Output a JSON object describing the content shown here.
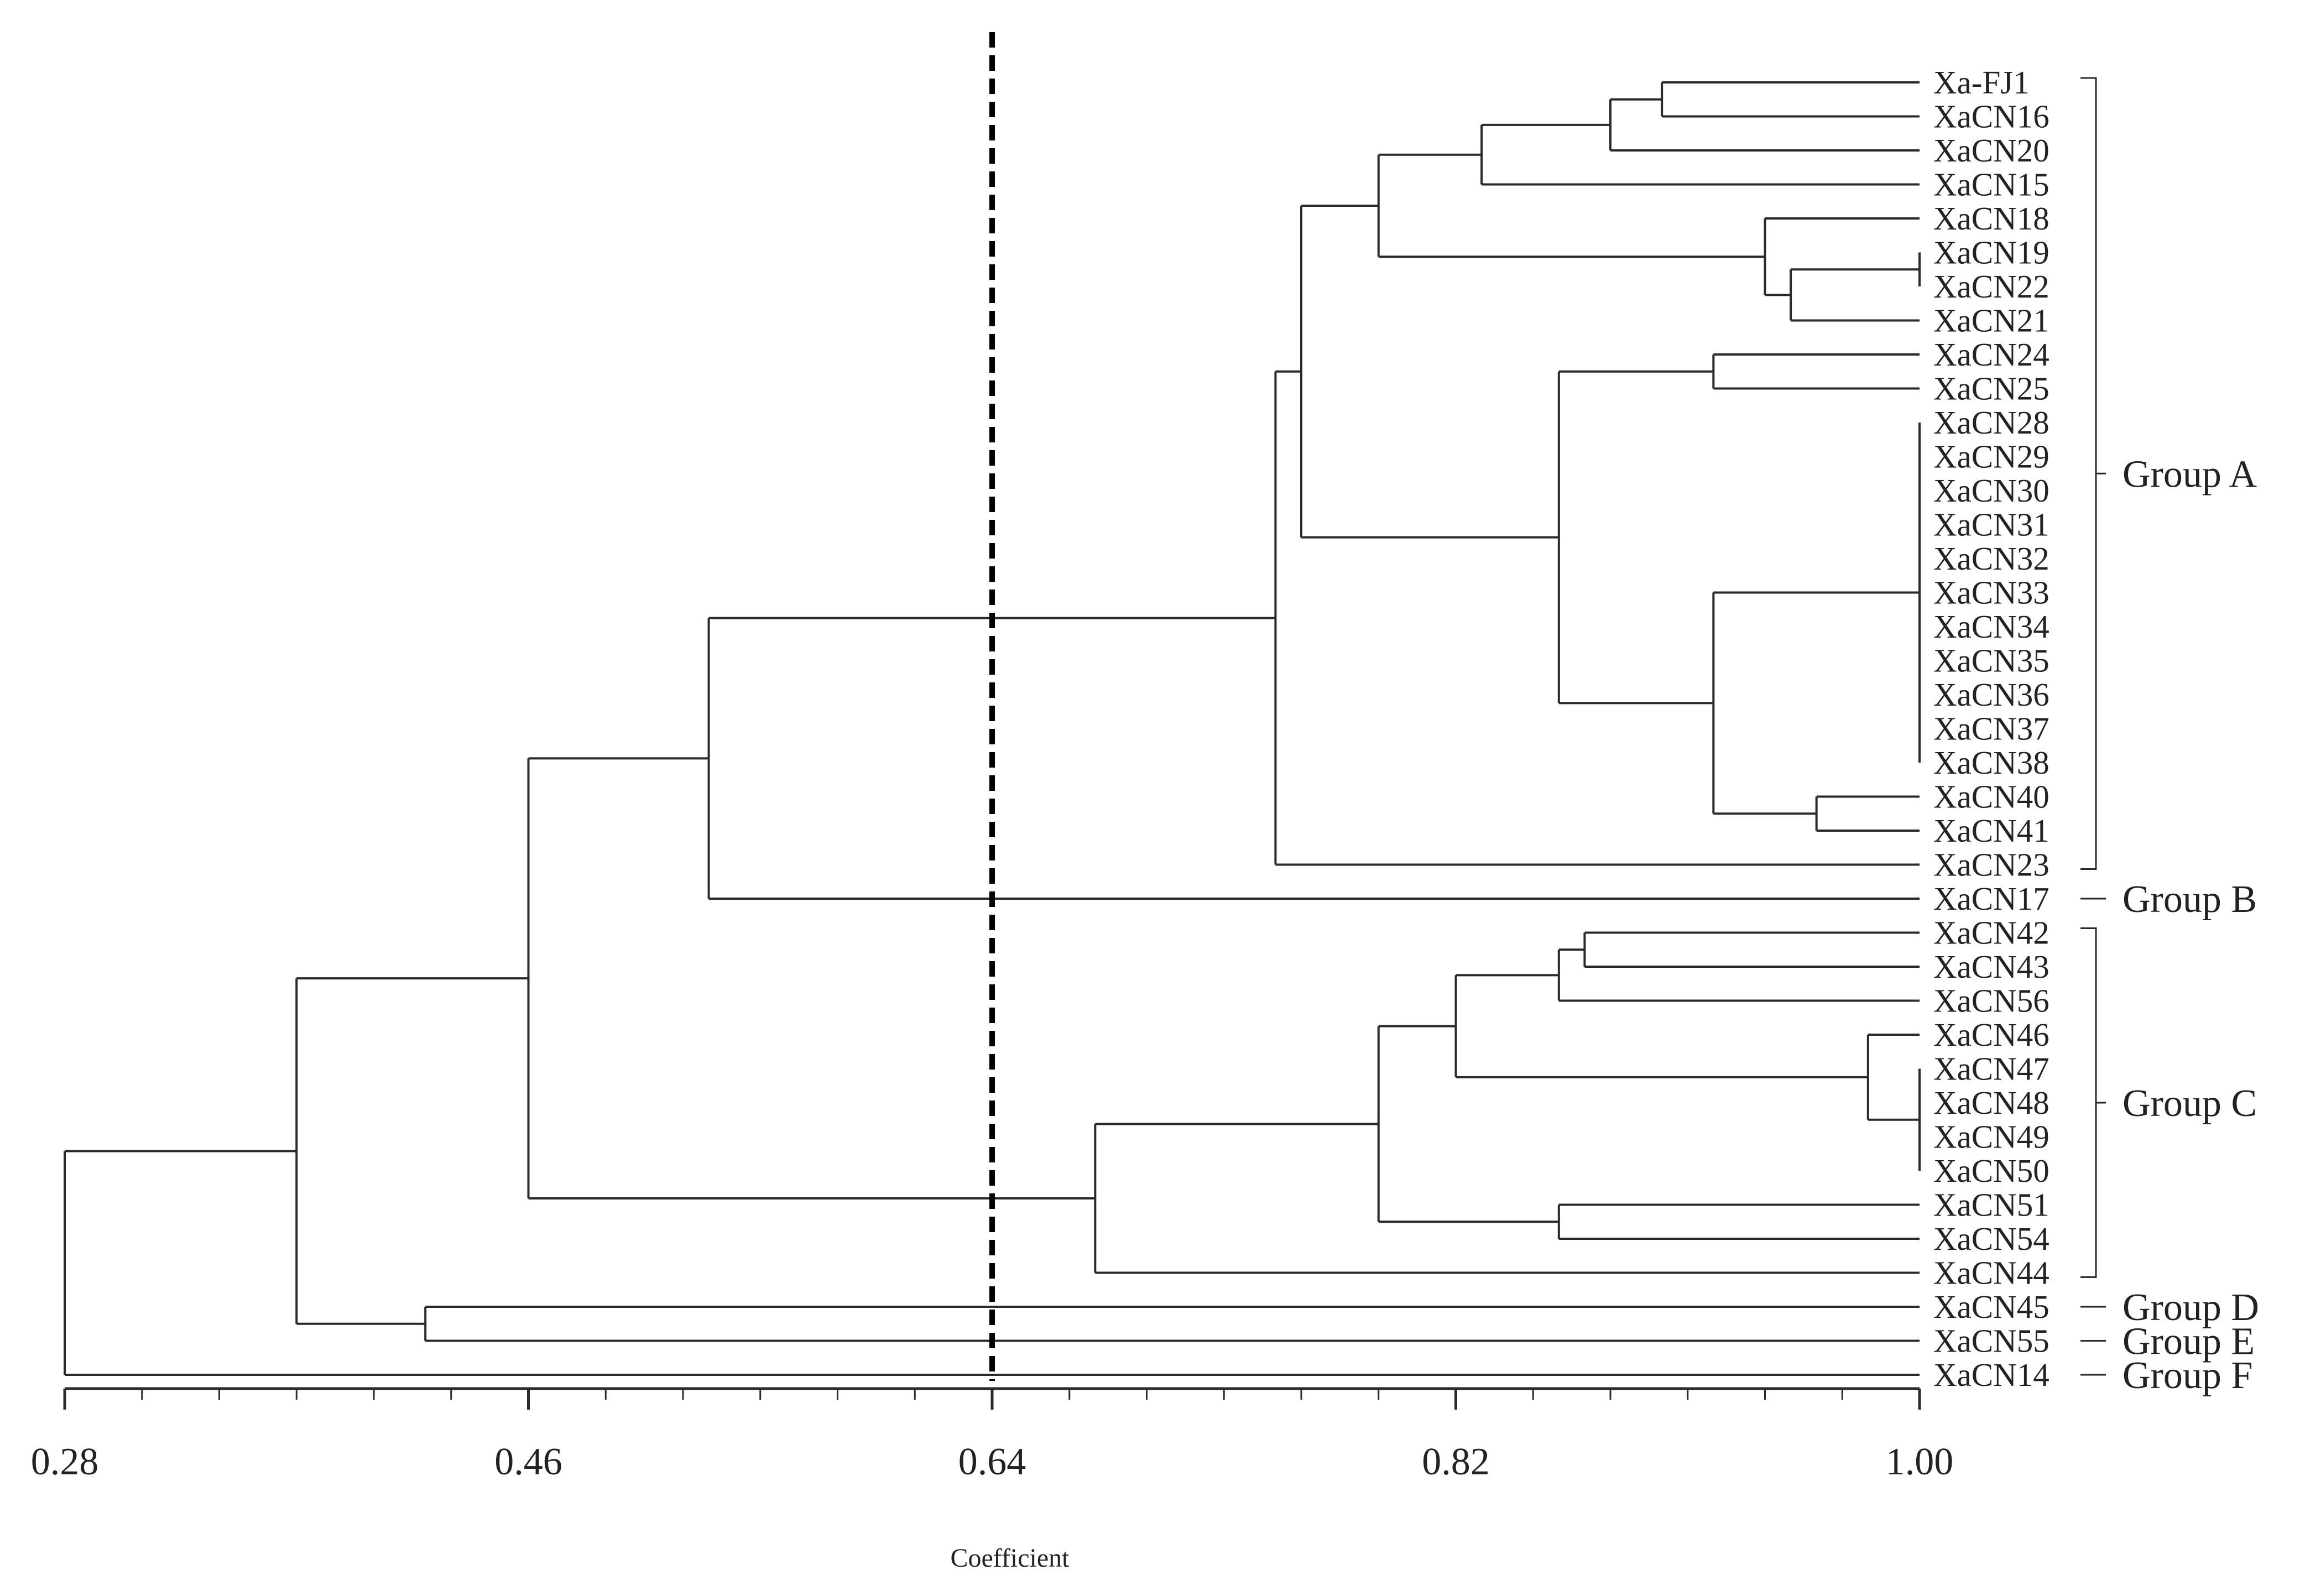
{
  "chart_data": {
    "type": "dendrogram",
    "xlabel": "Coefficient",
    "xlim": [
      0.28,
      1.0
    ],
    "tick_labels": [
      "0.28",
      "0.46",
      "0.64",
      "0.82",
      "1.00"
    ],
    "tick_values": [
      0.28,
      0.46,
      0.64,
      0.82,
      1.0
    ],
    "cutoff": 0.64,
    "leaves": [
      "Xa-FJ1",
      "XaCN16",
      "XaCN20",
      "XaCN15",
      "XaCN18",
      "XaCN19",
      "XaCN22",
      "XaCN21",
      "XaCN24",
      "XaCN25",
      "XaCN28",
      "XaCN29",
      "XaCN30",
      "XaCN31",
      "XaCN32",
      "XaCN33",
      "XaCN34",
      "XaCN35",
      "XaCN36",
      "XaCN37",
      "XaCN38",
      "XaCN40",
      "XaCN41",
      "XaCN23",
      "XaCN17",
      "XaCN42",
      "XaCN43",
      "XaCN56",
      "XaCN46",
      "XaCN47",
      "XaCN48",
      "XaCN49",
      "XaCN50",
      "XaCN51",
      "XaCN54",
      "XaCN44",
      "XaCN45",
      "XaCN55",
      "XaCN14"
    ],
    "merges": [
      {
        "members": [
          "Xa-FJ1",
          "XaCN16"
        ],
        "height": 0.9
      },
      {
        "members": [
          "Xa-FJ1",
          "XaCN16",
          "XaCN20"
        ],
        "height": 0.88
      },
      {
        "members": [
          "Xa-FJ1",
          "XaCN16",
          "XaCN20",
          "XaCN15"
        ],
        "height": 0.83
      },
      {
        "members": [
          "XaCN19",
          "XaCN22"
        ],
        "height": 1.0
      },
      {
        "members": [
          "XaCN19",
          "XaCN22",
          "XaCN21"
        ],
        "height": 0.95
      },
      {
        "members": [
          "XaCN18",
          "XaCN19",
          "XaCN22",
          "XaCN21"
        ],
        "height": 0.94
      },
      {
        "members": [
          "Xa-FJ1",
          "XaCN16",
          "XaCN20",
          "XaCN15",
          "XaCN18",
          "XaCN19",
          "XaCN22",
          "XaCN21"
        ],
        "height": 0.79
      },
      {
        "members": [
          "XaCN24",
          "XaCN25"
        ],
        "height": 0.92
      },
      {
        "members": [
          "XaCN28",
          "XaCN29",
          "XaCN30",
          "XaCN31",
          "XaCN32",
          "XaCN33",
          "XaCN34",
          "XaCN35",
          "XaCN36",
          "XaCN37",
          "XaCN38"
        ],
        "height": 1.0
      },
      {
        "members": [
          "XaCN40",
          "XaCN41"
        ],
        "height": 0.96
      },
      {
        "members": [
          "XaCN28",
          "XaCN29",
          "XaCN30",
          "XaCN31",
          "XaCN32",
          "XaCN33",
          "XaCN34",
          "XaCN35",
          "XaCN36",
          "XaCN37",
          "XaCN38",
          "XaCN40",
          "XaCN41"
        ],
        "height": 0.92
      },
      {
        "members": [
          "XaCN24",
          "XaCN25",
          "XaCN28",
          "XaCN29",
          "XaCN30",
          "XaCN31",
          "XaCN32",
          "XaCN33",
          "XaCN34",
          "XaCN35",
          "XaCN36",
          "XaCN37",
          "XaCN38",
          "XaCN40",
          "XaCN41"
        ],
        "height": 0.86
      },
      {
        "members": [
          "Xa-FJ1",
          "XaCN16",
          "XaCN20",
          "XaCN15",
          "XaCN18",
          "XaCN19",
          "XaCN22",
          "XaCN21",
          "XaCN24",
          "XaCN25",
          "XaCN28",
          "XaCN29",
          "XaCN30",
          "XaCN31",
          "XaCN32",
          "XaCN33",
          "XaCN34",
          "XaCN35",
          "XaCN36",
          "XaCN37",
          "XaCN38",
          "XaCN40",
          "XaCN41"
        ],
        "height": 0.76
      },
      {
        "members": [
          "Xa-FJ1",
          "XaCN16",
          "XaCN20",
          "XaCN15",
          "XaCN18",
          "XaCN19",
          "XaCN22",
          "XaCN21",
          "XaCN24",
          "XaCN25",
          "XaCN28",
          "XaCN29",
          "XaCN30",
          "XaCN31",
          "XaCN32",
          "XaCN33",
          "XaCN34",
          "XaCN35",
          "XaCN36",
          "XaCN37",
          "XaCN38",
          "XaCN40",
          "XaCN41",
          "XaCN23"
        ],
        "height": 0.75
      },
      {
        "members": [
          "Xa-FJ1",
          "XaCN16",
          "XaCN20",
          "XaCN15",
          "XaCN18",
          "XaCN19",
          "XaCN22",
          "XaCN21",
          "XaCN24",
          "XaCN25",
          "XaCN28",
          "XaCN29",
          "XaCN30",
          "XaCN31",
          "XaCN32",
          "XaCN33",
          "XaCN34",
          "XaCN35",
          "XaCN36",
          "XaCN37",
          "XaCN38",
          "XaCN40",
          "XaCN41",
          "XaCN23",
          "XaCN17"
        ],
        "height": 0.53
      },
      {
        "members": [
          "XaCN42",
          "XaCN43"
        ],
        "height": 0.87
      },
      {
        "members": [
          "XaCN42",
          "XaCN43",
          "XaCN56"
        ],
        "height": 0.86
      },
      {
        "members": [
          "XaCN47",
          "XaCN48",
          "XaCN49",
          "XaCN50"
        ],
        "height": 1.0
      },
      {
        "members": [
          "XaCN46",
          "XaCN47",
          "XaCN48",
          "XaCN49",
          "XaCN50"
        ],
        "height": 0.98
      },
      {
        "members": [
          "XaCN42",
          "XaCN43",
          "XaCN56",
          "XaCN46",
          "XaCN47",
          "XaCN48",
          "XaCN49",
          "XaCN50"
        ],
        "height": 0.82
      },
      {
        "members": [
          "XaCN51",
          "XaCN54"
        ],
        "height": 0.86
      },
      {
        "members": [
          "XaCN42",
          "XaCN43",
          "XaCN56",
          "XaCN46",
          "XaCN47",
          "XaCN48",
          "XaCN49",
          "XaCN50",
          "XaCN51",
          "XaCN54"
        ],
        "height": 0.79
      },
      {
        "members": [
          "XaCN42",
          "XaCN43",
          "XaCN56",
          "XaCN46",
          "XaCN47",
          "XaCN48",
          "XaCN49",
          "XaCN50",
          "XaCN51",
          "XaCN54",
          "XaCN44"
        ],
        "height": 0.68
      },
      {
        "members": [
          "Xa-FJ1",
          "XaCN16",
          "XaCN20",
          "XaCN15",
          "XaCN18",
          "XaCN19",
          "XaCN22",
          "XaCN21",
          "XaCN24",
          "XaCN25",
          "XaCN28",
          "XaCN29",
          "XaCN30",
          "XaCN31",
          "XaCN32",
          "XaCN33",
          "XaCN34",
          "XaCN35",
          "XaCN36",
          "XaCN37",
          "XaCN38",
          "XaCN40",
          "XaCN41",
          "XaCN23",
          "XaCN17",
          "XaCN42",
          "XaCN43",
          "XaCN56",
          "XaCN46",
          "XaCN47",
          "XaCN48",
          "XaCN49",
          "XaCN50",
          "XaCN51",
          "XaCN54",
          "XaCN44"
        ],
        "height": 0.46
      },
      {
        "members": [
          "XaCN45",
          "XaCN55"
        ],
        "height": 0.42
      },
      {
        "members": [
          "Xa-FJ1",
          "XaCN16",
          "XaCN20",
          "XaCN15",
          "XaCN18",
          "XaCN19",
          "XaCN22",
          "XaCN21",
          "XaCN24",
          "XaCN25",
          "XaCN28",
          "XaCN29",
          "XaCN30",
          "XaCN31",
          "XaCN32",
          "XaCN33",
          "XaCN34",
          "XaCN35",
          "XaCN36",
          "XaCN37",
          "XaCN38",
          "XaCN40",
          "XaCN41",
          "XaCN23",
          "XaCN17",
          "XaCN42",
          "XaCN43",
          "XaCN56",
          "XaCN46",
          "XaCN47",
          "XaCN48",
          "XaCN49",
          "XaCN50",
          "XaCN51",
          "XaCN54",
          "XaCN44",
          "XaCN45",
          "XaCN55"
        ],
        "height": 0.37
      },
      {
        "members": [
          "Xa-FJ1",
          "XaCN16",
          "XaCN20",
          "XaCN15",
          "XaCN18",
          "XaCN19",
          "XaCN22",
          "XaCN21",
          "XaCN24",
          "XaCN25",
          "XaCN28",
          "XaCN29",
          "XaCN30",
          "XaCN31",
          "XaCN32",
          "XaCN33",
          "XaCN34",
          "XaCN35",
          "XaCN36",
          "XaCN37",
          "XaCN38",
          "XaCN40",
          "XaCN41",
          "XaCN23",
          "XaCN17",
          "XaCN42",
          "XaCN43",
          "XaCN56",
          "XaCN46",
          "XaCN47",
          "XaCN48",
          "XaCN49",
          "XaCN50",
          "XaCN51",
          "XaCN54",
          "XaCN44",
          "XaCN45",
          "XaCN55",
          "XaCN14"
        ],
        "height": 0.28
      }
    ],
    "groups": [
      {
        "label": "Group A",
        "first": "Xa-FJ1",
        "last": "XaCN23"
      },
      {
        "label": "Group B",
        "first": "XaCN17",
        "last": "XaCN17"
      },
      {
        "label": "Group C",
        "first": "XaCN42",
        "last": "XaCN44"
      },
      {
        "label": "Group D",
        "first": "XaCN45",
        "last": "XaCN45"
      },
      {
        "label": "Group E",
        "first": "XaCN55",
        "last": "XaCN55"
      },
      {
        "label": "Group F",
        "first": "XaCN14",
        "last": "XaCN14"
      }
    ],
    "colors": {
      "line": "#2a2a2a",
      "text": "#222222",
      "cutoff": "#000000"
    }
  }
}
